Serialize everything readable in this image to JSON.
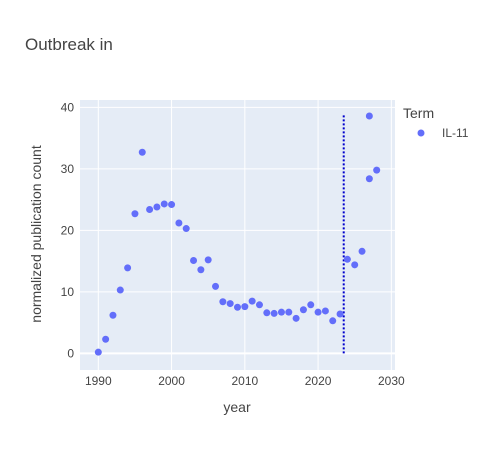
{
  "chart_data": {
    "type": "scatter",
    "title": "Outbreak in",
    "xlabel": "year",
    "ylabel": "normalized publication count",
    "xlim": [
      1987.5,
      2030.5
    ],
    "ylim": [
      -2.7,
      41.2
    ],
    "xticks": [
      1990,
      2000,
      2010,
      2020,
      2030
    ],
    "yticks": [
      0,
      10,
      20,
      30,
      40
    ],
    "grid": true,
    "legend_title": "Term",
    "legend_position": "top-right",
    "vline": {
      "x": 2023.5,
      "y_from": 0,
      "y_to": 38.8,
      "style": "dotted",
      "color": "#0000cc"
    },
    "series": [
      {
        "name": "IL-11",
        "color": "#636efa",
        "x": [
          1990,
          1991,
          1992,
          1993,
          1994,
          1995,
          1996,
          1997,
          1998,
          1999,
          2000,
          2001,
          2002,
          2003,
          2004,
          2005,
          2006,
          2007,
          2008,
          2009,
          2010,
          2011,
          2012,
          2013,
          2014,
          2015,
          2016,
          2017,
          2018,
          2019,
          2020,
          2021,
          2022,
          2023,
          2024,
          2025,
          2026,
          2027,
          2027,
          2028
        ],
        "y": [
          0.2,
          2.3,
          6.2,
          10.3,
          13.9,
          22.7,
          32.7,
          23.4,
          23.8,
          24.3,
          24.2,
          21.2,
          20.3,
          15.1,
          13.6,
          15.2,
          10.9,
          8.4,
          8.1,
          7.5,
          7.6,
          8.5,
          7.9,
          6.6,
          6.5,
          6.7,
          6.7,
          5.7,
          7.1,
          7.9,
          6.7,
          6.9,
          5.3,
          6.4,
          15.3,
          14.4,
          16.6,
          28.4,
          38.6,
          29.8
        ]
      }
    ]
  }
}
